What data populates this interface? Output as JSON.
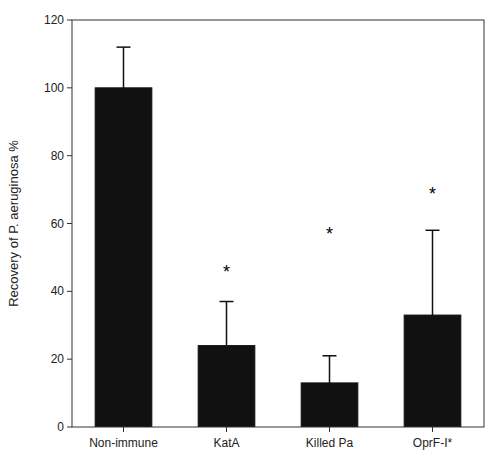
{
  "chart_data": {
    "type": "bar",
    "categories": [
      "Non-immune",
      "KatA",
      "Killed Pa",
      "OprF-I*"
    ],
    "values": [
      100,
      24,
      13,
      33
    ],
    "errors": [
      12,
      13,
      8,
      25
    ],
    "color": "#111111",
    "y_label": "Recovery of P. aeruginosa %",
    "ylim": [
      0,
      120
    ],
    "yticks": [
      0,
      20,
      40,
      60,
      80,
      100,
      120
    ],
    "grid": false,
    "annotations": [
      {
        "text": "*",
        "category": "KatA",
        "y": 44
      },
      {
        "text": "*",
        "category": "Killed Pa",
        "y": 55
      },
      {
        "text": "*",
        "category": "OprF-I*",
        "y": 67
      }
    ]
  }
}
